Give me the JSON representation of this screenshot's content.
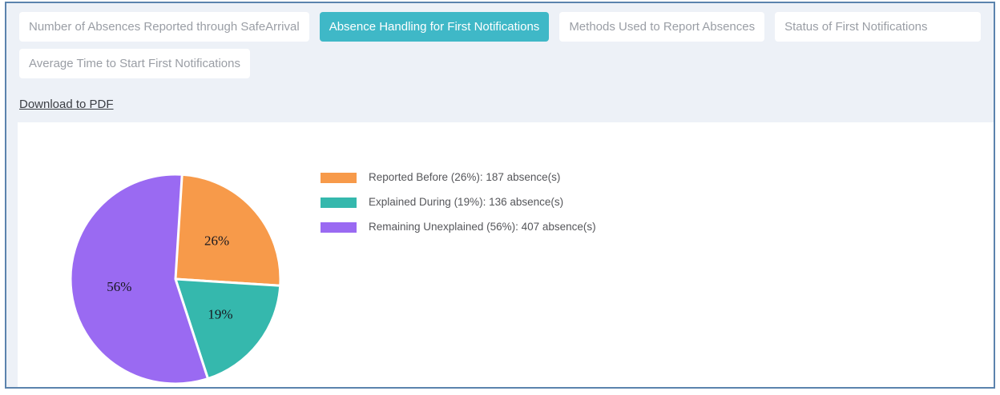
{
  "tabs": [
    {
      "label": "Number of Absences Reported through SafeArrival",
      "active": false
    },
    {
      "label": "Absence Handling for First Notifications",
      "active": true
    },
    {
      "label": "Methods Used to Report Absences",
      "active": false
    },
    {
      "label": "Status of First Notifications",
      "active": false
    },
    {
      "label": "Average Time to Start First Notifications",
      "active": false
    }
  ],
  "toolbar": {
    "download_label": "Download to PDF"
  },
  "colors": {
    "frame_border": "#5b83ad",
    "page_background": "#edf1f7",
    "panel_background": "#ffffff",
    "active_tab": "#3fb8c7",
    "inactive_tab_text": "#9a9ea5"
  },
  "chart_data": {
    "type": "pie",
    "title": "",
    "start_angle_deg": 0,
    "direction": "clockwise",
    "legend_position": "right",
    "units": "absence(s)",
    "series": [
      {
        "name": "Reported Before",
        "pct": 26,
        "value": 187,
        "color": "#f79a4a",
        "slice_label": "26%",
        "legend_label": "Reported Before (26%): 187 absence(s)"
      },
      {
        "name": "Explained During",
        "pct": 19,
        "value": 136,
        "color": "#35b8ad",
        "slice_label": "19%",
        "legend_label": "Explained During (19%): 136 absence(s)"
      },
      {
        "name": "Remaining Unexplained",
        "pct": 56,
        "value": 407,
        "color": "#9a6af2",
        "slice_label": "56%",
        "legend_label": "Remaining Unexplained (56%): 407 absence(s)"
      }
    ]
  }
}
